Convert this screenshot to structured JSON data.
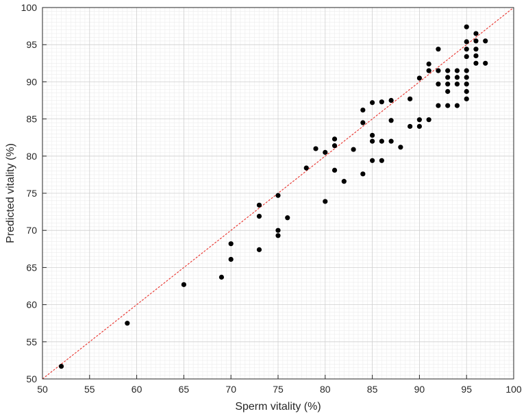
{
  "chart_data": {
    "type": "scatter",
    "title": "",
    "xlabel": "Sperm vitality (%)",
    "ylabel": "Predicted vitality (%)",
    "xlim": [
      50,
      100
    ],
    "ylim": [
      50,
      100
    ],
    "xticks": [
      "50",
      "55",
      "60",
      "65",
      "70",
      "75",
      "80",
      "85",
      "90",
      "95",
      "100"
    ],
    "yticks": [
      "50",
      "55",
      "60",
      "65",
      "70",
      "75",
      "80",
      "85",
      "90",
      "95",
      "100"
    ],
    "grid": "major and minor",
    "reference_line": {
      "style": "dashed",
      "color": "#e8302a",
      "from": [
        50,
        50
      ],
      "to": [
        100,
        100
      ]
    },
    "marker_color": "#000000",
    "points": [
      [
        52,
        51.7
      ],
      [
        59,
        57.5
      ],
      [
        65,
        62.7
      ],
      [
        69,
        63.7
      ],
      [
        70,
        66.1
      ],
      [
        70,
        68.2
      ],
      [
        73,
        67.4
      ],
      [
        73,
        71.9
      ],
      [
        73,
        73.4
      ],
      [
        75,
        69.3
      ],
      [
        75,
        70.0
      ],
      [
        75,
        74.7
      ],
      [
        76,
        71.7
      ],
      [
        78,
        78.4
      ],
      [
        79,
        81.0
      ],
      [
        80,
        73.9
      ],
      [
        80,
        80.5
      ],
      [
        81,
        78.1
      ],
      [
        81,
        81.4
      ],
      [
        81,
        82.3
      ],
      [
        82,
        76.6
      ],
      [
        83,
        80.9
      ],
      [
        84,
        77.6
      ],
      [
        84,
        84.5
      ],
      [
        84,
        86.2
      ],
      [
        85,
        79.4
      ],
      [
        85,
        82.0
      ],
      [
        85,
        82.8
      ],
      [
        85,
        87.2
      ],
      [
        86,
        79.4
      ],
      [
        86,
        82.0
      ],
      [
        86,
        87.3
      ],
      [
        87,
        82.0
      ],
      [
        87,
        84.8
      ],
      [
        87,
        87.5
      ],
      [
        88,
        81.2
      ],
      [
        89,
        84.0
      ],
      [
        89,
        87.7
      ],
      [
        90,
        84.0
      ],
      [
        90,
        84.9
      ],
      [
        90,
        90.5
      ],
      [
        91,
        84.9
      ],
      [
        91,
        91.5
      ],
      [
        91,
        92.4
      ],
      [
        92,
        86.8
      ],
      [
        92,
        89.7
      ],
      [
        92,
        91.5
      ],
      [
        92,
        94.4
      ],
      [
        93,
        86.8
      ],
      [
        93,
        88.7
      ],
      [
        93,
        89.7
      ],
      [
        93,
        90.6
      ],
      [
        93,
        91.5
      ],
      [
        94,
        86.8
      ],
      [
        94,
        89.7
      ],
      [
        94,
        90.6
      ],
      [
        94,
        91.5
      ],
      [
        95,
        87.7
      ],
      [
        95,
        88.7
      ],
      [
        95,
        89.7
      ],
      [
        95,
        90.6
      ],
      [
        95,
        91.5
      ],
      [
        95,
        93.4
      ],
      [
        95,
        94.4
      ],
      [
        95,
        95.4
      ],
      [
        95,
        97.4
      ],
      [
        96,
        92.5
      ],
      [
        96,
        93.5
      ],
      [
        96,
        94.4
      ],
      [
        96,
        95.5
      ],
      [
        96,
        96.5
      ],
      [
        97,
        92.5
      ],
      [
        97,
        95.5
      ]
    ]
  }
}
